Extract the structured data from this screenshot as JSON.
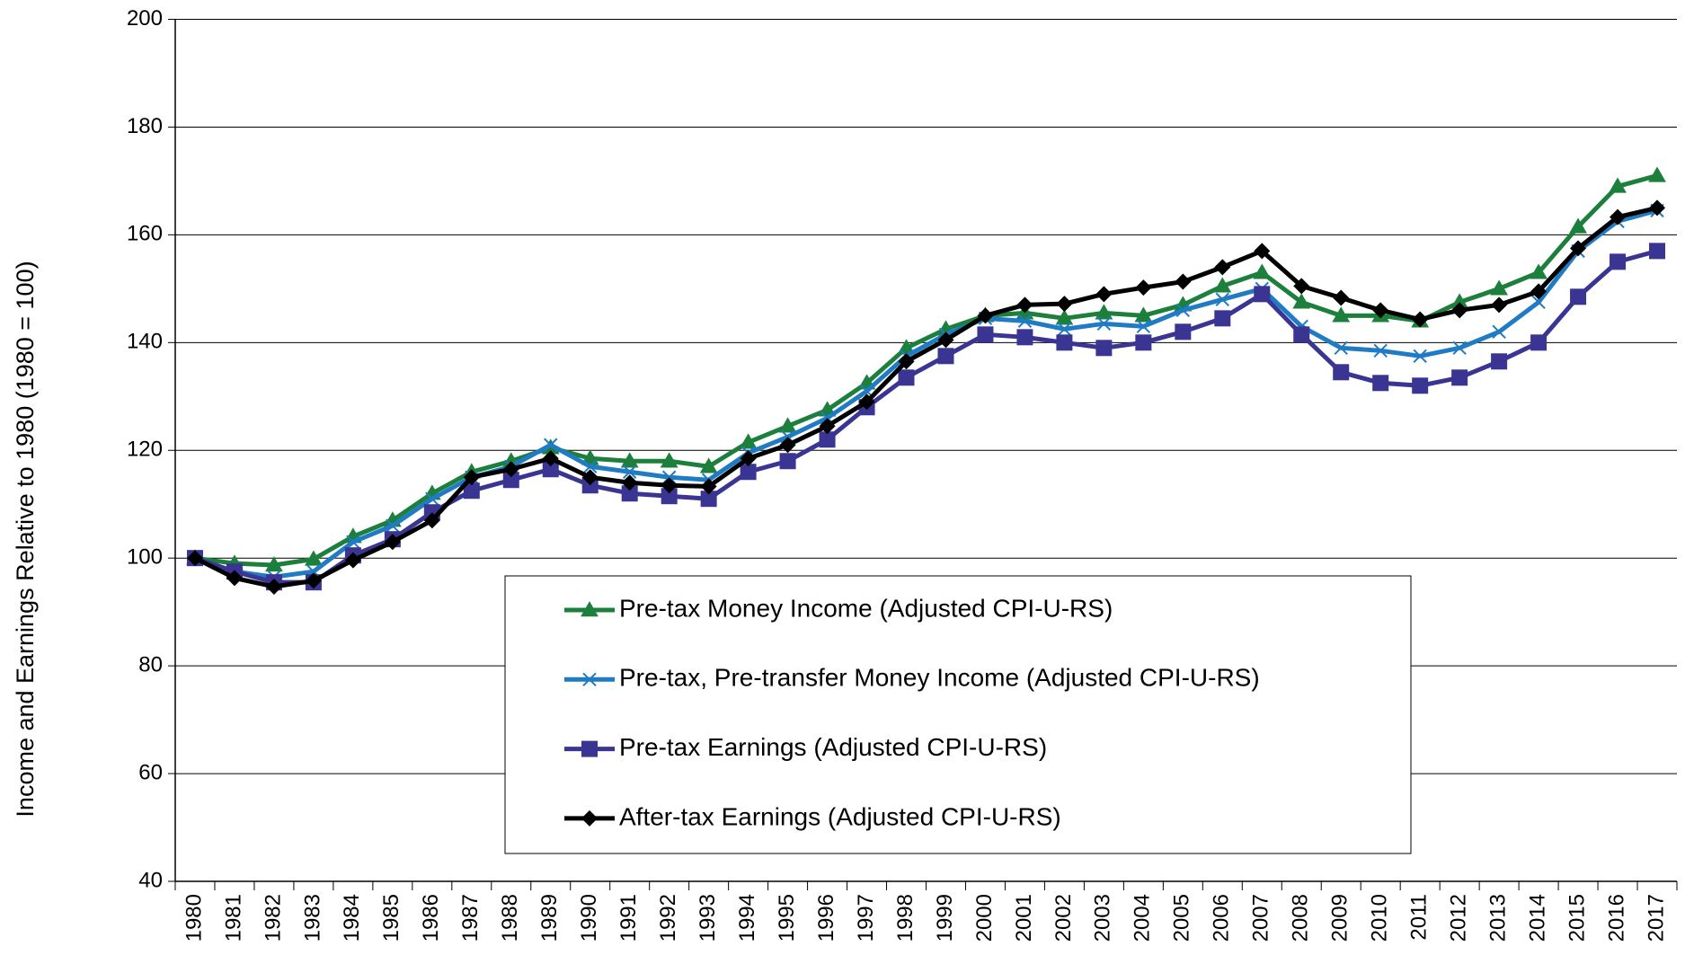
{
  "chart_data": {
    "type": "line",
    "y_label": "Income and Earnings Relative to 1980 (1980 = 100)",
    "categories": [
      "1980",
      "1981",
      "1982",
      "1983",
      "1984",
      "1985",
      "1986",
      "1987",
      "1988",
      "1989",
      "1990",
      "1991",
      "1992",
      "1993",
      "1994",
      "1995",
      "1996",
      "1997",
      "1998",
      "1999",
      "2000",
      "2001",
      "2002",
      "2003",
      "2004",
      "2005",
      "2006",
      "2007",
      "2008",
      "2009",
      "2010",
      "2011",
      "2012",
      "2013",
      "2014",
      "2015",
      "2016",
      "2017"
    ],
    "ylim": [
      40,
      200
    ],
    "yticks": [
      40,
      60,
      80,
      100,
      120,
      140,
      160,
      180,
      200
    ],
    "grid": true,
    "series": [
      {
        "name": "Pre-tax Money Income (Adjusted CPI-U-RS)",
        "color": "#1d7f3c",
        "marker": "triangle",
        "values": [
          100,
          99,
          98.7,
          99.8,
          104,
          107,
          112,
          116,
          118,
          120.5,
          118.5,
          118,
          118,
          117,
          121.5,
          124.5,
          127.5,
          132.5,
          139,
          142.5,
          145,
          145.5,
          144.5,
          145.5,
          145,
          147,
          150.5,
          153,
          147.5,
          145,
          145,
          144,
          147.5,
          150,
          153,
          161.5,
          169,
          171
        ]
      },
      {
        "name": "Pre-tax, Pre-transfer Money Income (Adjusted CPI-U-RS)",
        "color": "#1f7bc4",
        "marker": "x",
        "values": [
          100,
          97.5,
          96.5,
          97.5,
          103,
          106,
          111,
          115,
          117,
          121,
          117,
          116,
          115,
          114.5,
          119.5,
          122.5,
          126,
          131,
          137.5,
          141.5,
          144.5,
          144,
          142.5,
          143.5,
          143,
          146,
          148,
          150,
          143,
          139,
          138.5,
          137.5,
          139,
          142,
          147.5,
          157,
          162.5,
          164.5
        ]
      },
      {
        "name": "Pre-tax Earnings (Adjusted CPI-U-RS)",
        "color": "#3a3593",
        "marker": "square",
        "values": [
          100,
          97.5,
          95.5,
          95.5,
          100.5,
          103.5,
          108.5,
          112.5,
          114.5,
          116.5,
          113.5,
          112,
          111.5,
          111,
          116,
          118,
          122,
          128,
          133.5,
          137.5,
          141.5,
          141,
          140,
          139,
          140,
          142,
          144.5,
          149,
          141.5,
          134.5,
          132.5,
          132,
          133.5,
          136.5,
          140,
          148.5,
          155,
          157
        ]
      },
      {
        "name": "After-tax Earnings (Adjusted CPI-U-RS)",
        "color": "#000000",
        "marker": "diamond",
        "values": [
          100,
          96.3,
          94.7,
          95.8,
          99.6,
          103,
          107,
          115,
          116.5,
          118.5,
          115,
          114,
          113.5,
          113.3,
          118.5,
          121,
          124.5,
          129,
          136.5,
          140.5,
          145,
          147,
          147.2,
          149,
          150.2,
          151.3,
          154,
          157,
          150.5,
          148.3,
          146,
          144.3,
          146,
          147,
          149.5,
          157.5,
          163.3,
          165
        ]
      }
    ]
  }
}
